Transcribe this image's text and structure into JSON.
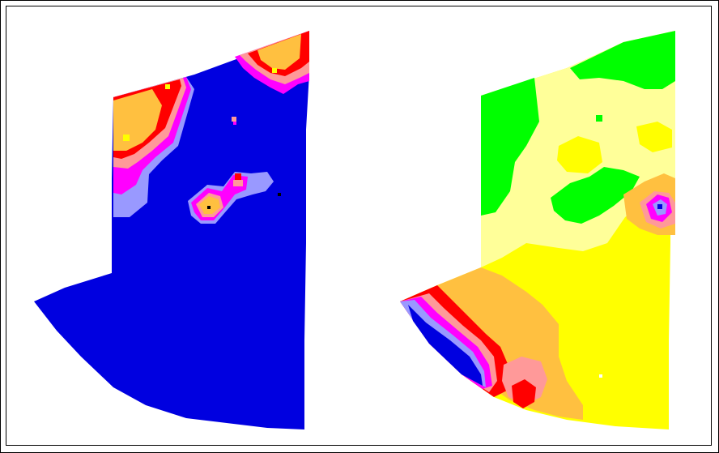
{
  "palette": {
    "deep_blue": "#0000e0",
    "periwinkle": "#9999ff",
    "magenta": "#ff00ff",
    "pink": "#ff9999",
    "red": "#ff0000",
    "orange": "#ffc040",
    "yellow": "#ffff00",
    "pale_yellow": "#ffff99",
    "green": "#00ff00",
    "black": "#000000"
  },
  "panels": [
    {
      "name": "left-map-panel"
    },
    {
      "name": "right-map-panel"
    }
  ]
}
